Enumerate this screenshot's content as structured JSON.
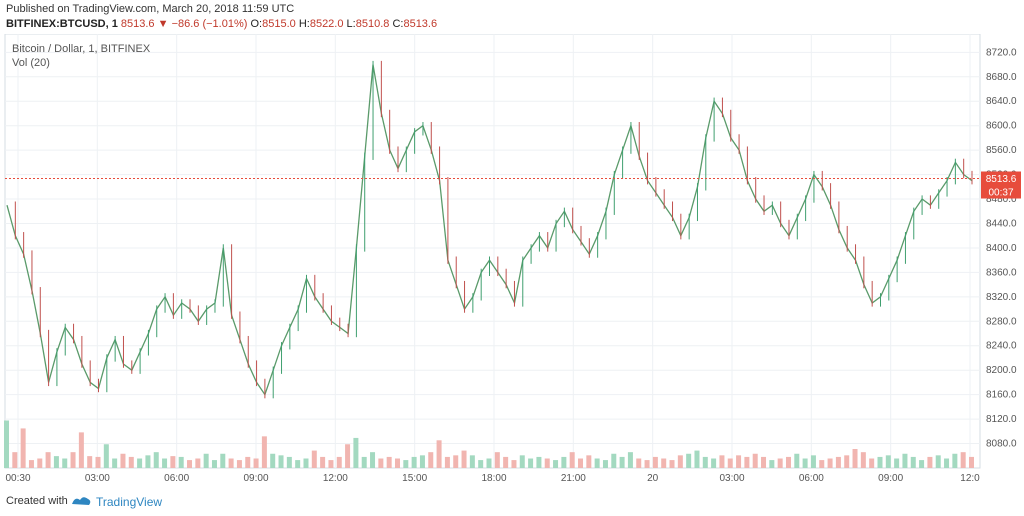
{
  "header": {
    "published": "Published on TradingView.com, March 20, 2018 11:59 UTC",
    "symbol": "BITFINEX:BTCUSD, 1",
    "last": "8513.6",
    "change": "−86.6 (−1.01%)",
    "o_label": "O:",
    "o_value": "8515.0",
    "h_label": "H:",
    "h_value": "8522.0",
    "l_label": "L:",
    "l_value": "8510.8",
    "c_label": "C:",
    "c_value": "8513.6"
  },
  "chart_data": {
    "type": "line",
    "title": "Bitcoin / Dollar, 1, BITFINEX",
    "indicator": "Vol (20)",
    "ylim": [
      8040,
      8750
    ],
    "yticks": [
      "8720.0",
      "8680.0",
      "8640.0",
      "8600.0",
      "8560.0",
      "8520.0",
      "8480.0",
      "8440.0",
      "8400.0",
      "8360.0",
      "8320.0",
      "8280.0",
      "8240.0",
      "8200.0",
      "8160.0",
      "8120.0",
      "8080.0"
    ],
    "xticks": [
      "00:30",
      "03:00",
      "06:00",
      "09:00",
      "12:00",
      "15:00",
      "18:00",
      "21:00",
      "20",
      "03:00",
      "06:00",
      "09:00",
      "12:0"
    ],
    "last_price": 8513.6,
    "last_price_label": "8513.6",
    "countdown_label": "00:37",
    "series": [
      {
        "values": [
          8470,
          8420,
          8390,
          8330,
          8260,
          8180,
          8230,
          8270,
          8250,
          8210,
          8180,
          8170,
          8220,
          8250,
          8210,
          8200,
          8230,
          8260,
          8300,
          8320,
          8290,
          8310,
          8300,
          8280,
          8300,
          8310,
          8400,
          8290,
          8250,
          8210,
          8180,
          8160,
          8200,
          8240,
          8270,
          8300,
          8350,
          8320,
          8300,
          8280,
          8270,
          8260,
          8400,
          8550,
          8700,
          8620,
          8560,
          8530,
          8560,
          8590,
          8600,
          8560,
          8510,
          8380,
          8340,
          8300,
          8320,
          8360,
          8380,
          8360,
          8340,
          8310,
          8380,
          8400,
          8420,
          8400,
          8440,
          8460,
          8430,
          8410,
          8390,
          8420,
          8460,
          8520,
          8560,
          8600,
          8550,
          8510,
          8490,
          8470,
          8450,
          8420,
          8450,
          8500,
          8580,
          8640,
          8620,
          8580,
          8560,
          8510,
          8480,
          8460,
          8470,
          8440,
          8420,
          8450,
          8480,
          8520,
          8500,
          8470,
          8430,
          8400,
          8380,
          8340,
          8310,
          8320,
          8350,
          8380,
          8420,
          8460,
          8480,
          8470,
          8490,
          8510,
          8540,
          8520,
          8510
        ]
      },
      {
        "values": [
          60,
          20,
          50,
          10,
          12,
          20,
          15,
          12,
          20,
          45,
          15,
          14,
          30,
          12,
          18,
          14,
          12,
          16,
          20,
          12,
          15,
          14,
          10,
          12,
          18,
          10,
          18,
          12,
          10,
          14,
          12,
          40,
          18,
          16,
          14,
          10,
          12,
          22,
          14,
          10,
          14,
          30,
          38,
          14,
          20,
          12,
          14,
          12,
          10,
          14,
          16,
          20,
          35,
          14,
          16,
          22,
          16,
          10,
          12,
          20,
          14,
          10,
          16,
          12,
          14,
          12,
          10,
          14,
          20,
          12,
          16,
          12,
          10,
          18,
          14,
          20,
          12,
          10,
          14,
          12,
          10,
          16,
          18,
          22,
          14,
          12,
          16,
          12,
          16,
          14,
          18,
          14,
          10,
          12,
          14,
          18,
          12,
          16,
          10,
          12,
          14,
          16,
          24,
          20,
          12,
          14,
          16,
          12,
          18,
          14,
          10,
          14,
          16,
          12,
          18,
          20,
          14
        ]
      }
    ]
  },
  "footer": {
    "created_with": "Created with",
    "brand": "TradingView"
  }
}
